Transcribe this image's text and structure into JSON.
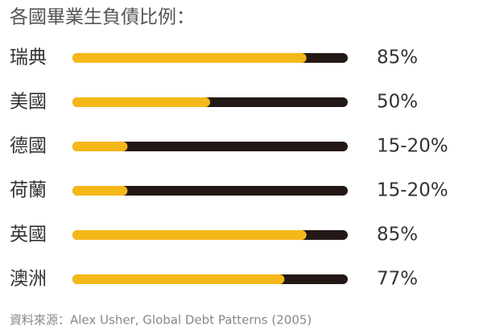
{
  "chart_data": {
    "type": "progress-bar",
    "title": "各國畢業生負債比例：",
    "categories": [
      "瑞典",
      "美國",
      "德國",
      "荷蘭",
      "英國",
      "澳洲"
    ],
    "values": [
      85,
      50,
      20,
      20,
      85,
      77
    ],
    "value_labels": [
      "85%",
      "50%",
      "15-20%",
      "15-20%",
      "85%",
      "77%"
    ],
    "xlim": [
      0,
      100
    ],
    "color": "#f5b819",
    "track_color": "#231815",
    "source": "資料來源：Alex Usher, Global Debt Patterns (2005)"
  }
}
